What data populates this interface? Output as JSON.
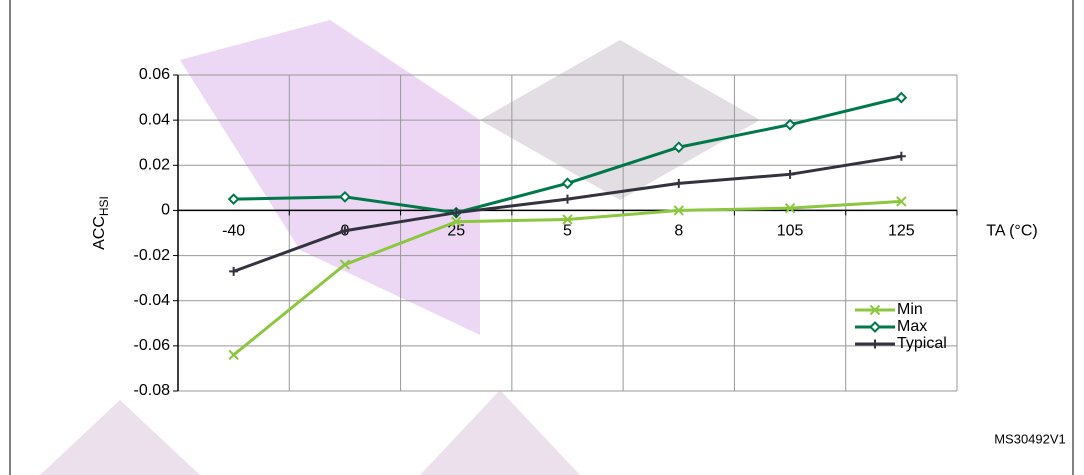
{
  "chart_data": {
    "type": "line",
    "y_label": "ACC",
    "y_label_sub": "HSI",
    "x_label": "TA (°C)",
    "categories": [
      "-40",
      "0",
      "25",
      "5",
      "8",
      "105",
      "125"
    ],
    "series": [
      {
        "name": "Min",
        "color": "#8dc63f",
        "marker": "x",
        "values": [
          -0.064,
          -0.024,
          -0.005,
          -0.004,
          0.0,
          0.001,
          0.004
        ]
      },
      {
        "name": "Max",
        "color": "#00784a",
        "marker": "diamond",
        "values": [
          0.005,
          0.006,
          -0.001,
          0.012,
          0.028,
          0.038,
          0.05
        ]
      },
      {
        "name": "Typical",
        "color": "#333340",
        "marker": "plus",
        "values": [
          -0.027,
          -0.009,
          -0.001,
          0.005,
          0.012,
          0.016,
          0.024
        ]
      }
    ],
    "ylim": [
      -0.08,
      0.06
    ],
    "yticks": [
      -0.08,
      -0.06,
      -0.04,
      -0.02,
      0,
      0.02,
      0.04,
      0.06
    ],
    "grid": true,
    "legend": "lower-right",
    "figure_id": "MS30492V1"
  }
}
